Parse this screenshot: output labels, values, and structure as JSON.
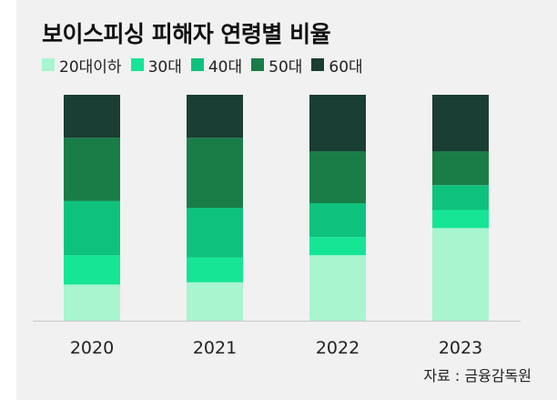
{
  "chart_data": {
    "type": "bar",
    "stacked": true,
    "title": "보이스피싱 피해자 연령별 비율",
    "categories": [
      "2020",
      "2021",
      "2022",
      "2023"
    ],
    "ylim": [
      0,
      100
    ],
    "grid": false,
    "legend_position": "top-left",
    "series": [
      {
        "name": "20대이하",
        "color": "#a8f5cf",
        "values": [
          16,
          17,
          29,
          41
        ]
      },
      {
        "name": "30대",
        "color": "#16e596",
        "values": [
          13,
          11,
          8,
          8
        ]
      },
      {
        "name": "40대",
        "color": "#0ec27d",
        "values": [
          24,
          22,
          15,
          11
        ]
      },
      {
        "name": "50대",
        "color": "#1a7d47",
        "values": [
          28,
          31,
          23,
          15
        ]
      },
      {
        "name": "60대",
        "color": "#1a3d34",
        "values": [
          19,
          19,
          25,
          25
        ]
      }
    ],
    "source": "자료 : 금융감독원"
  }
}
